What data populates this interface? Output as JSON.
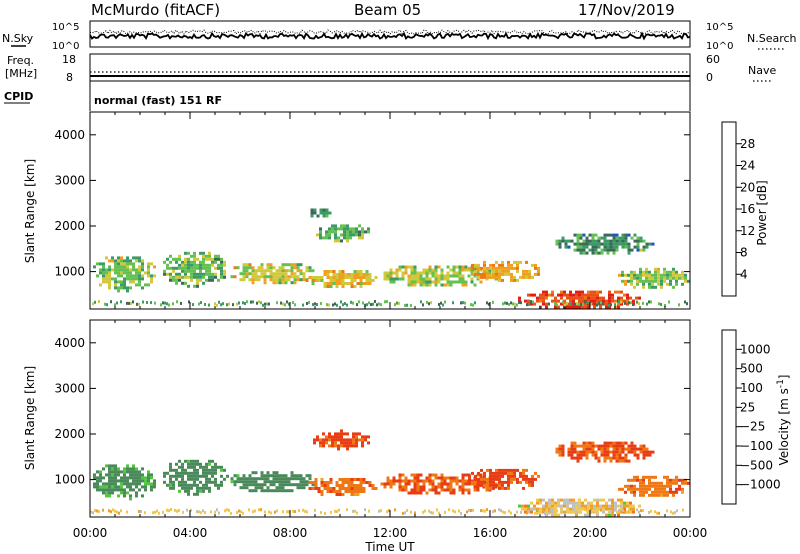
{
  "header": {
    "station": "McMurdo (fitACF)",
    "beam": "Beam 05",
    "date": "17/Nov/2019"
  },
  "labels": {
    "nsky": "N.Sky",
    "nsearch": "N.Search",
    "freq_line1": "Freq.",
    "freq_line2": "[MHz]",
    "nave": "Nave",
    "cpid": "CPID",
    "cpid_value": "normal (fast) 151 RF"
  },
  "noise_axes": {
    "left": [
      "10^5",
      "10^0"
    ],
    "right": [
      "10^5",
      "10^0"
    ]
  },
  "freq_axes": {
    "left": [
      "18",
      "8"
    ],
    "right": [
      "60",
      "0"
    ]
  },
  "chart_data": [
    {
      "type": "heatmap",
      "title": "Power",
      "ylabel": "Slant Range [km]",
      "xlabel": "Time UT",
      "ylim": [
        180,
        4500
      ],
      "yticks": [
        1000,
        2000,
        3000,
        4000
      ],
      "xlim": [
        "00:00",
        "24:00"
      ],
      "xticks": [
        "00:00",
        "04:00",
        "08:00",
        "12:00",
        "16:00",
        "20:00",
        "00:00"
      ],
      "colorbar": {
        "label": "Power [dB]",
        "ticks": [
          "4",
          "8",
          "12",
          "16",
          "20",
          "24",
          "28"
        ],
        "range": [
          0,
          30
        ],
        "colors": [
          "#0000ee",
          "#2050c8",
          "#3c6a58",
          "#3c9a64",
          "#64c050",
          "#d2c83c",
          "#f0a01e",
          "#f07814",
          "#e85014",
          "#e01e14"
        ]
      },
      "echo_regions": [
        {
          "t0": 0.0,
          "t1": 2.6,
          "r0": 600,
          "r1": 1400,
          "power": 14
        },
        {
          "t0": 2.8,
          "t1": 5.5,
          "r0": 700,
          "r1": 1500,
          "power": 13
        },
        {
          "t0": 5.5,
          "t1": 9.0,
          "r0": 750,
          "r1": 1250,
          "power": 16
        },
        {
          "t0": 8.5,
          "t1": 11.5,
          "r0": 650,
          "r1": 1100,
          "power": 18
        },
        {
          "t0": 8.8,
          "t1": 11.2,
          "r0": 1700,
          "r1": 2100,
          "power": 12
        },
        {
          "t0": 8.7,
          "t1": 9.6,
          "r0": 2200,
          "r1": 2450,
          "power": 9
        },
        {
          "t0": 11.5,
          "t1": 16.5,
          "r0": 700,
          "r1": 1200,
          "power": 15
        },
        {
          "t0": 15.0,
          "t1": 18.0,
          "r0": 800,
          "r1": 1300,
          "power": 19
        },
        {
          "t0": 17.0,
          "t1": 22.0,
          "r0": 200,
          "r1": 650,
          "power": 26
        },
        {
          "t0": 18.5,
          "t1": 22.5,
          "r0": 1400,
          "r1": 1900,
          "power": 10
        },
        {
          "t0": 21.0,
          "t1": 24.0,
          "r0": 650,
          "r1": 1150,
          "power": 14
        }
      ]
    },
    {
      "type": "heatmap",
      "title": "Velocity",
      "ylabel": "Slant Range [km]",
      "xlabel": "Time UT",
      "ylim": [
        180,
        4500
      ],
      "yticks": [
        1000,
        2000,
        3000,
        4000
      ],
      "xlim": [
        "00:00",
        "24:00"
      ],
      "xticks": [
        "00:00",
        "04:00",
        "08:00",
        "12:00",
        "16:00",
        "20:00",
        "00:00"
      ],
      "colorbar": {
        "label": "Velocity [m s^-1]",
        "ticks": [
          "1000",
          "500",
          "100",
          "25",
          "−25",
          "−100",
          "−500",
          "−1000"
        ],
        "colors": [
          "#2a3ca0",
          "#2c6a8c",
          "#4a8a5a",
          "#50c83c",
          "#c0c0c0",
          "#f0c850",
          "#f0a028",
          "#f07814",
          "#e83c14",
          "#e00e0e"
        ]
      },
      "echo_regions": [
        {
          "t0": 0.0,
          "t1": 2.6,
          "r0": 600,
          "r1": 1400,
          "velocity": 250
        },
        {
          "t0": 2.8,
          "t1": 5.5,
          "r0": 700,
          "r1": 1500,
          "velocity": 300
        },
        {
          "t0": 5.5,
          "t1": 9.0,
          "r0": 750,
          "r1": 1250,
          "velocity": 300
        },
        {
          "t0": 8.5,
          "t1": 11.5,
          "r0": 650,
          "r1": 1100,
          "velocity": -200
        },
        {
          "t0": 8.8,
          "t1": 11.2,
          "r0": 1700,
          "r1": 2100,
          "velocity": -300
        },
        {
          "t0": 11.5,
          "t1": 16.5,
          "r0": 700,
          "r1": 1200,
          "velocity": -250
        },
        {
          "t0": 15.0,
          "t1": 18.0,
          "r0": 800,
          "r1": 1300,
          "velocity": -300
        },
        {
          "t0": 17.0,
          "t1": 22.0,
          "r0": 200,
          "r1": 650,
          "velocity": 0
        },
        {
          "t0": 18.5,
          "t1": 22.5,
          "r0": 1400,
          "r1": 1900,
          "velocity": -250
        },
        {
          "t0": 21.0,
          "t1": 24.0,
          "r0": 650,
          "r1": 1150,
          "velocity": -200
        }
      ]
    }
  ]
}
